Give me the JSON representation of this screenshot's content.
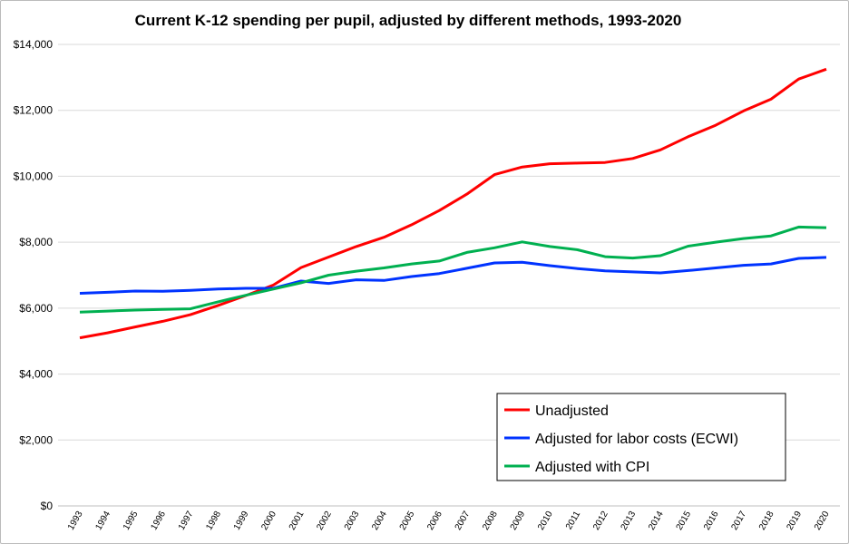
{
  "chart_data": {
    "type": "line",
    "title": "Current K-12 spending per pupil, adjusted by different methods, 1993-2020",
    "xlabel": "",
    "ylabel": "",
    "ylim": [
      0,
      14000
    ],
    "yticks": [
      "$0",
      "$2,000",
      "$4,000",
      "$6,000",
      "$8,000",
      "$10,000",
      "$12,000",
      "$14,000"
    ],
    "grid": true,
    "legend_placement": "bottom-right",
    "x": [
      "1993",
      "1994",
      "1995",
      "1996",
      "1997",
      "1998",
      "1999",
      "2000",
      "2001",
      "2002",
      "2003",
      "2004",
      "2005",
      "2006",
      "2007",
      "2008",
      "2009",
      "2010",
      "2011",
      "2012",
      "2013",
      "2014",
      "2015",
      "2016",
      "2017",
      "2018",
      "2019",
      "2020"
    ],
    "series": [
      {
        "name": "Unadjusted",
        "color": "#ff0000",
        "values": [
          5100,
          5250,
          5430,
          5600,
          5800,
          6080,
          6380,
          6700,
          7230,
          7550,
          7870,
          8150,
          8530,
          8960,
          9460,
          10050,
          10280,
          10380,
          10400,
          10420,
          10540,
          10800,
          11200,
          11550,
          11980,
          12340,
          12950,
          13250
        ]
      },
      {
        "name": "Adjusted for labor costs (ECWI)",
        "color": "#0033ff",
        "values": [
          6450,
          6480,
          6520,
          6510,
          6540,
          6580,
          6600,
          6600,
          6820,
          6750,
          6860,
          6840,
          6960,
          7050,
          7210,
          7370,
          7390,
          7290,
          7200,
          7130,
          7100,
          7070,
          7140,
          7220,
          7300,
          7340,
          7510,
          7540
        ]
      },
      {
        "name": "Adjusted with CPI",
        "color": "#00b050",
        "values": [
          5880,
          5910,
          5940,
          5960,
          5980,
          6190,
          6390,
          6580,
          6770,
          7000,
          7120,
          7220,
          7340,
          7430,
          7690,
          7830,
          8010,
          7870,
          7770,
          7560,
          7520,
          7590,
          7880,
          8000,
          8110,
          8190,
          8460,
          8440
        ]
      }
    ]
  }
}
